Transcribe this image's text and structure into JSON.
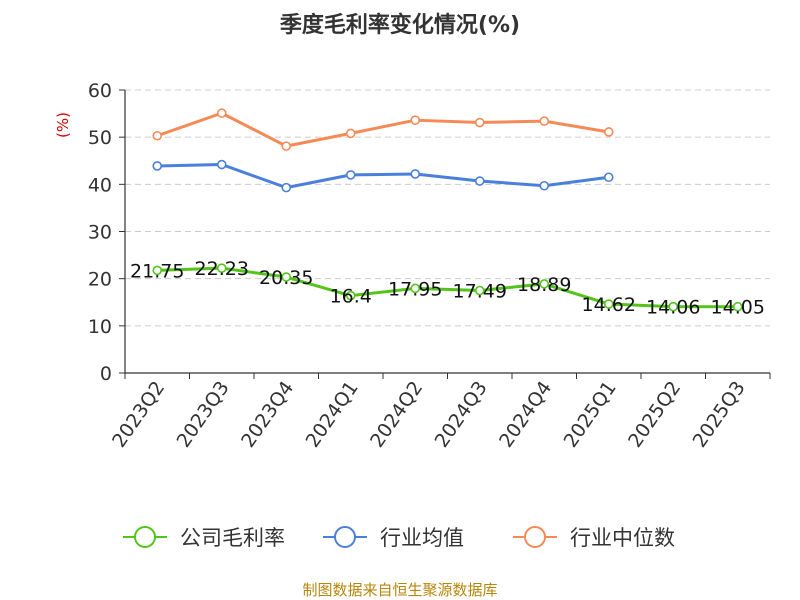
{
  "chart_data": {
    "type": "line",
    "title": "季度毛利率变化情况(%)",
    "ylabel": "(%)",
    "xlabel": "",
    "ylim": [
      0,
      60
    ],
    "yticks": [
      0,
      10,
      20,
      30,
      40,
      50,
      60
    ],
    "grid": true,
    "categories": [
      "2023Q2",
      "2023Q3",
      "2023Q4",
      "2024Q1",
      "2024Q2",
      "2024Q3",
      "2024Q4",
      "2025Q1",
      "2025Q2",
      "2025Q3"
    ],
    "series": [
      {
        "name": "公司毛利率",
        "color": "#52c41a",
        "values": [
          21.75,
          22.23,
          20.35,
          16.4,
          17.95,
          17.49,
          18.89,
          14.62,
          14.06,
          14.05
        ],
        "labels": [
          "21.75",
          "22.23",
          "20.35",
          "16.4",
          "17.95",
          "17.49",
          "18.89",
          "14.62",
          "14.06",
          "14.05"
        ],
        "show_labels": true
      },
      {
        "name": "行业均值",
        "color": "#4a7fdc",
        "values": [
          43.9,
          44.2,
          39.3,
          42.0,
          42.2,
          40.7,
          39.7,
          41.5,
          null,
          null
        ],
        "show_labels": false
      },
      {
        "name": "行业中位数",
        "color": "#f58a56",
        "values": [
          50.3,
          55.1,
          48.1,
          50.8,
          53.6,
          53.1,
          53.4,
          51.1,
          null,
          null
        ],
        "show_labels": false
      }
    ],
    "legend_position": "bottom"
  },
  "footer": {
    "source": "制图数据来自恒生聚源数据库"
  }
}
